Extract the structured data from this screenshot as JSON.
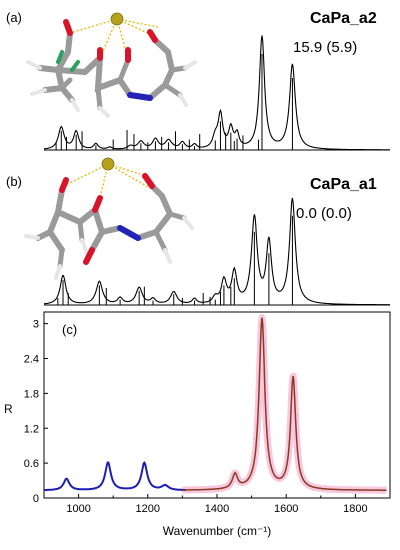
{
  "panels": [
    {
      "label": "(a)",
      "name": "CaPa_a2",
      "energy": "15.9  (5.9)",
      "chart_data": {
        "type": "line",
        "xlim": [
          900,
          1900
        ],
        "peaks": [
          {
            "x": 950,
            "h": 0.2,
            "w": 10
          },
          {
            "x": 993,
            "h": 0.16,
            "w": 9
          },
          {
            "x": 1050,
            "h": 0.05,
            "w": 8
          },
          {
            "x": 1090,
            "h": 0.02,
            "w": 8
          },
          {
            "x": 1150,
            "h": 0.03,
            "w": 10
          },
          {
            "x": 1180,
            "h": 0.07,
            "w": 11
          },
          {
            "x": 1222,
            "h": 0.09,
            "w": 10
          },
          {
            "x": 1260,
            "h": 0.08,
            "w": 12
          },
          {
            "x": 1300,
            "h": 0.06,
            "w": 9
          },
          {
            "x": 1335,
            "h": 0.04,
            "w": 8
          },
          {
            "x": 1395,
            "h": 0.1,
            "w": 9
          },
          {
            "x": 1410,
            "h": 0.3,
            "w": 8
          },
          {
            "x": 1440,
            "h": 0.18,
            "w": 8
          },
          {
            "x": 1458,
            "h": 0.12,
            "w": 7
          },
          {
            "x": 1530,
            "h": 1.0,
            "w": 9
          },
          {
            "x": 1618,
            "h": 0.75,
            "w": 10
          }
        ],
        "sticks": [
          935,
          950,
          965,
          993,
          1010,
          1050,
          1100,
          1140,
          1160,
          1180,
          1200,
          1222,
          1240,
          1260,
          1280,
          1300,
          1320,
          1335,
          1350,
          1395,
          1410,
          1425,
          1440,
          1450,
          1458,
          1475,
          1520,
          1530,
          1618
        ]
      },
      "atoms": {
        "calcium": "#b5a11a",
        "oxygen": "#d8142a",
        "carbon": "#9a9a9a",
        "hydrogen": "#e6e6e6",
        "nitrogen": "#2323b8",
        "coordination": "#e6b800"
      }
    },
    {
      "label": "(b)",
      "name": "CaPa_a1",
      "energy": "0.0 (0.0)",
      "chart_data": {
        "type": "line",
        "xlim": [
          900,
          1900
        ],
        "peaks": [
          {
            "x": 955,
            "h": 0.28,
            "w": 10
          },
          {
            "x": 1060,
            "h": 0.22,
            "w": 11
          },
          {
            "x": 1120,
            "h": 0.06,
            "w": 9
          },
          {
            "x": 1175,
            "h": 0.16,
            "w": 11
          },
          {
            "x": 1215,
            "h": 0.05,
            "w": 9
          },
          {
            "x": 1275,
            "h": 0.12,
            "w": 11
          },
          {
            "x": 1335,
            "h": 0.05,
            "w": 8
          },
          {
            "x": 1395,
            "h": 0.06,
            "w": 9
          },
          {
            "x": 1420,
            "h": 0.22,
            "w": 9
          },
          {
            "x": 1450,
            "h": 0.3,
            "w": 9
          },
          {
            "x": 1508,
            "h": 0.82,
            "w": 10
          },
          {
            "x": 1550,
            "h": 0.58,
            "w": 9
          },
          {
            "x": 1618,
            "h": 1.0,
            "w": 10
          }
        ],
        "sticks": [
          940,
          955,
          970,
          1060,
          1080,
          1120,
          1175,
          1190,
          1215,
          1275,
          1300,
          1335,
          1360,
          1380,
          1395,
          1410,
          1420,
          1440,
          1450,
          1508,
          1550,
          1618
        ]
      }
    },
    {
      "label": "(c)",
      "chart_data": {
        "type": "line",
        "xlabel": "Wavenumber (cm⁻¹)",
        "ylabel": "R",
        "xlim": [
          900,
          1900
        ],
        "ylim": [
          0,
          3.2
        ],
        "xticks": [
          "1000",
          "1200",
          "1400",
          "1600",
          "1800"
        ],
        "yticks": [
          "0",
          "0.6",
          "1.2",
          "1.8",
          "2.4",
          "3"
        ],
        "series": [
          {
            "color": "#1e1eb4",
            "baseline": 0.13,
            "xrange": [
              900,
              1310
            ],
            "peaks": [
              {
                "x": 965,
                "h": 0.2,
                "w": 10
              },
              {
                "x": 1085,
                "h": 0.48,
                "w": 10
              },
              {
                "x": 1190,
                "h": 0.47,
                "w": 10
              },
              {
                "x": 1250,
                "h": 0.08,
                "w": 12
              }
            ]
          },
          {
            "color": "#8b3a20",
            "baseline": 0.13,
            "xrange": [
              1300,
              1890
            ],
            "peaks": [
              {
                "x": 1452,
                "h": 0.25,
                "w": 9
              },
              {
                "x": 1530,
                "h": 2.95,
                "w": 10
              },
              {
                "x": 1620,
                "h": 1.93,
                "w": 9
              }
            ]
          }
        ],
        "highlight_color": "#f7c6df"
      }
    }
  ]
}
